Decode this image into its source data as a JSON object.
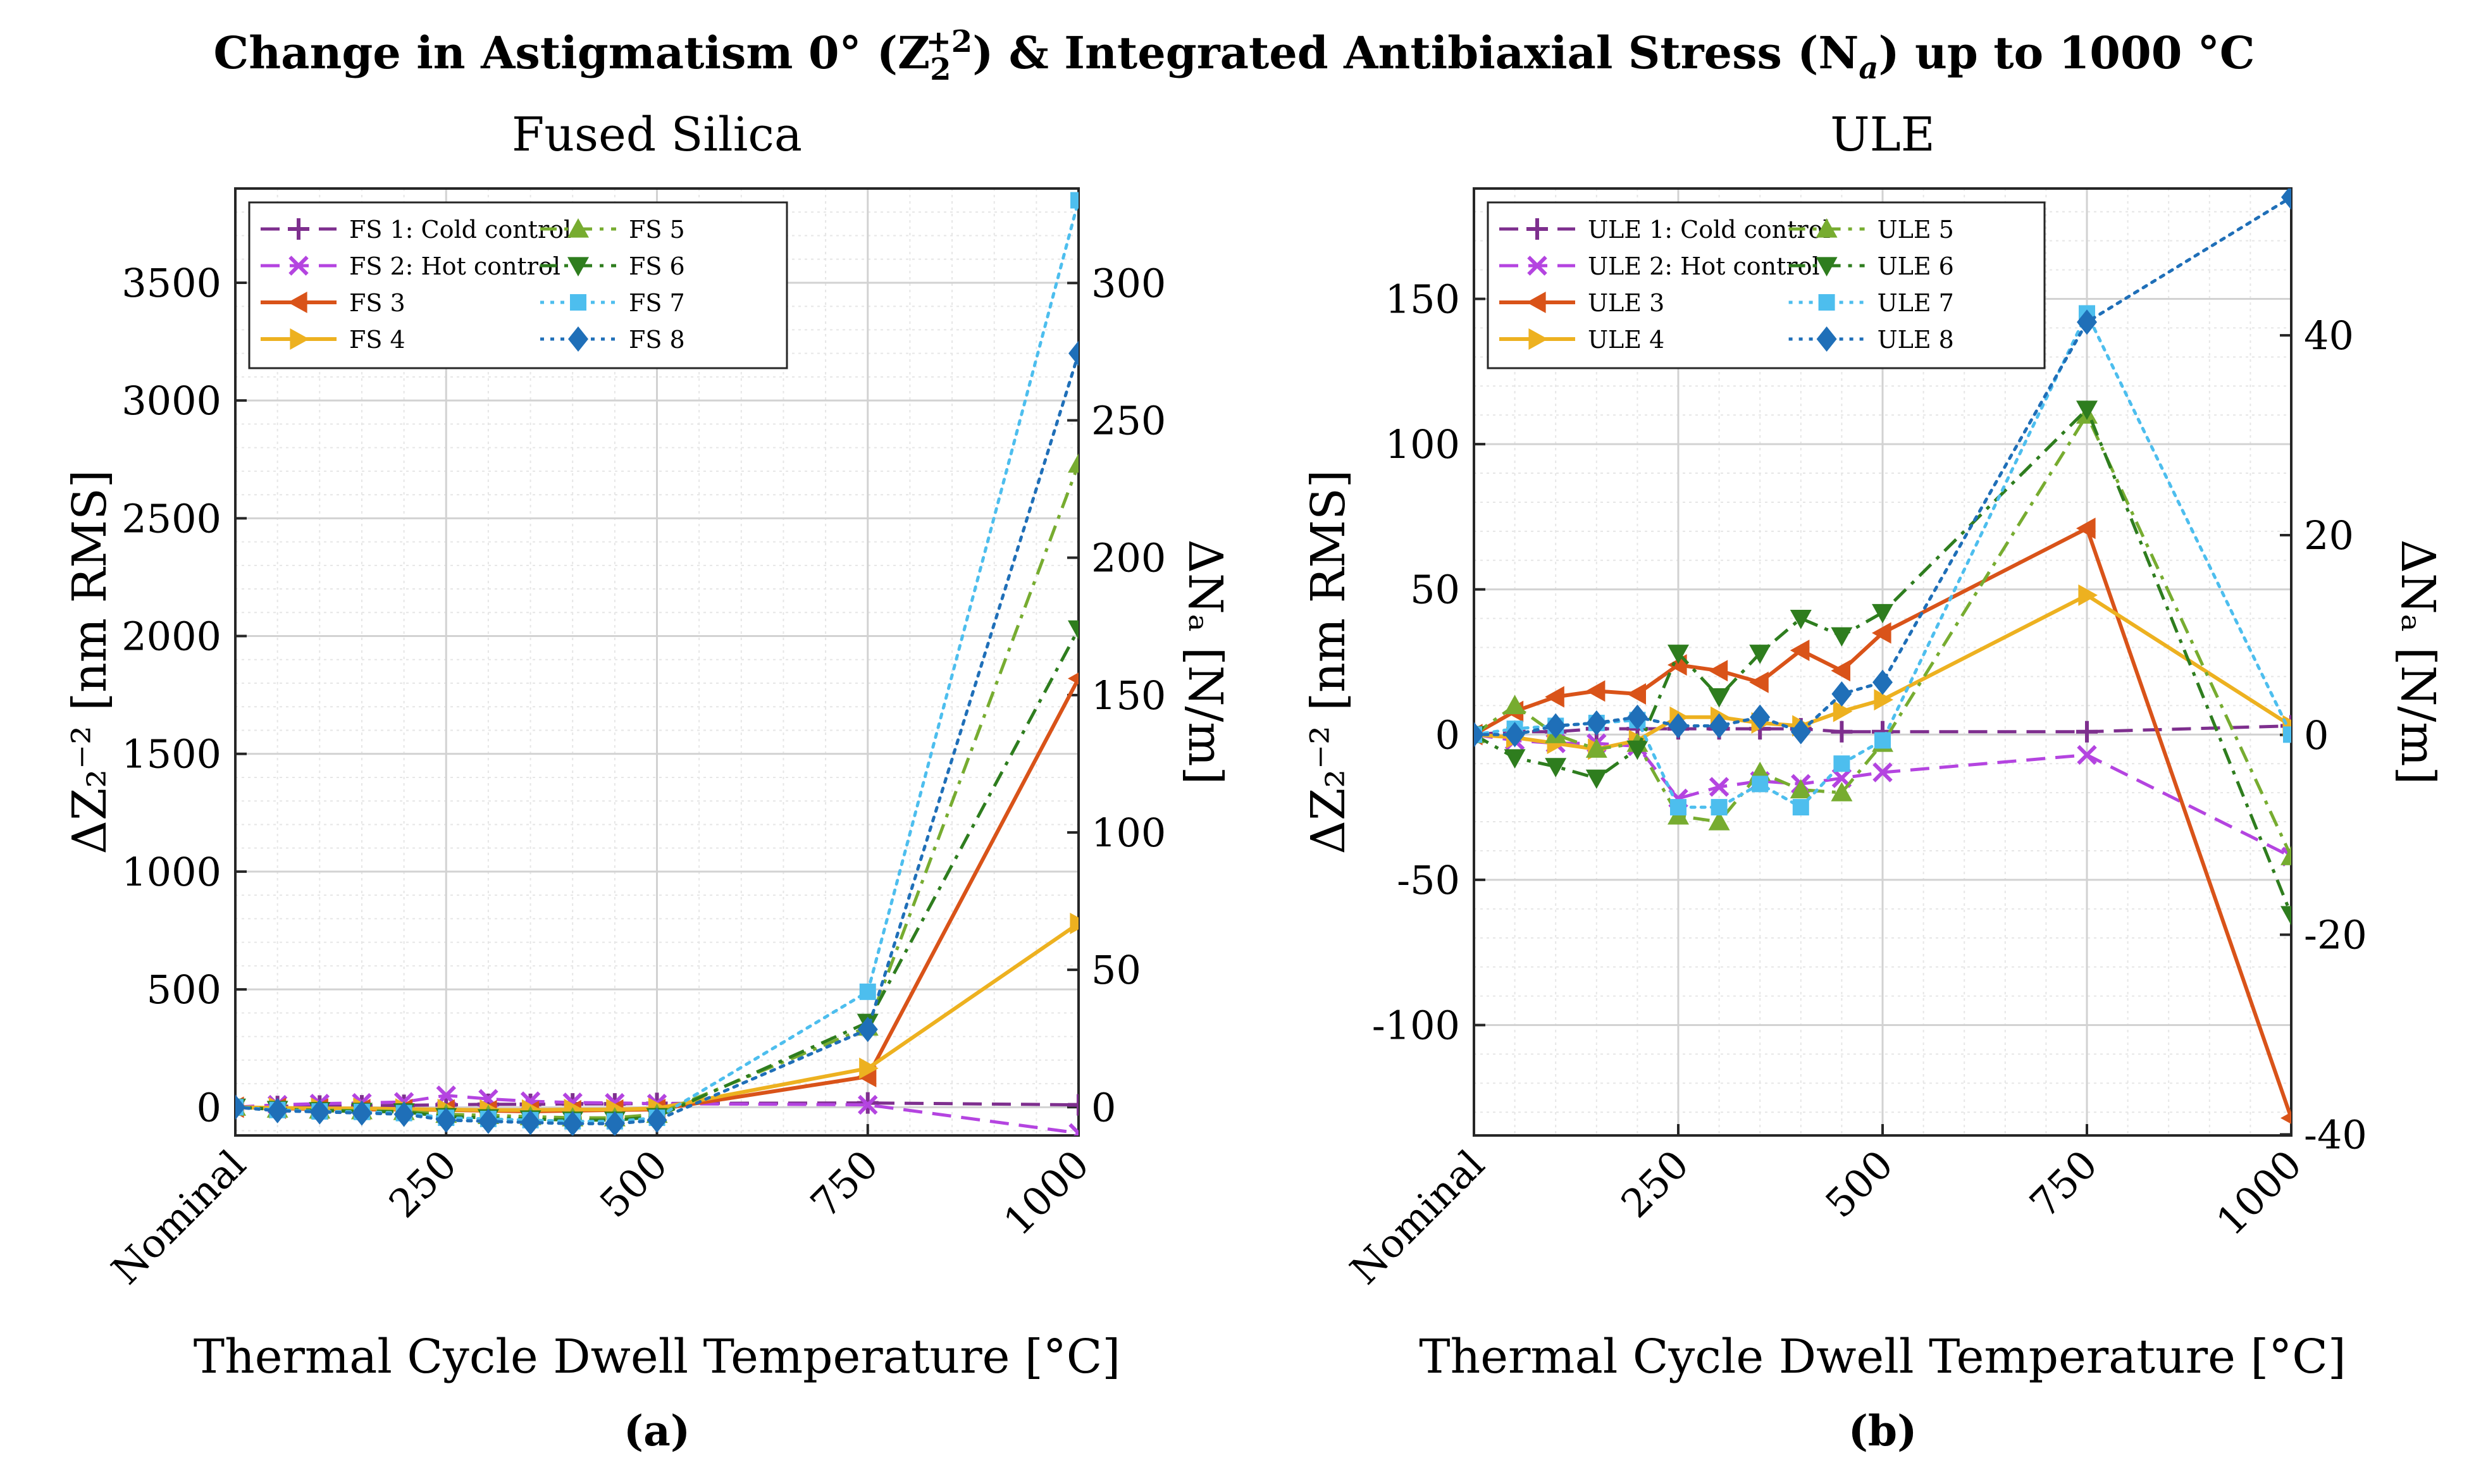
{
  "figure": {
    "title_main": "Change in Astigmatism 0° (Z",
    "title_sub": "2",
    "title_sup": "+2",
    "title_mid": ") & Integrated Antibiaxial Stress (N",
    "title_na_sub": "a",
    "title_end": ") up to 1000 °C",
    "colors": {
      "c1": "#7E2F8E",
      "c2": "#B444E0",
      "c3": "#D95319",
      "c4": "#EDB120",
      "c5": "#77AC30",
      "c6": "#2E7D1E",
      "c7": "#4DBEEE",
      "c8": "#1F6FB8"
    }
  },
  "chart_data": [
    {
      "type": "line",
      "panel_label": "(a)",
      "title": "Fused Silica",
      "xlabel": "Thermal Cycle Dwell Temperature [°C]",
      "ylabel_left": "ΔZ₂⁻² [nm RMS]",
      "ylabel_right": "ΔNₐ [N/m]",
      "xlim": [
        0,
        1000
      ],
      "ylim_left": [
        -120,
        3900
      ],
      "ylim_right": [
        -10.3,
        334.4
      ],
      "xticks": [
        0,
        250,
        500,
        750,
        1000
      ],
      "xticklabels": [
        "Nominal",
        "250",
        "500",
        "750",
        "1000"
      ],
      "yticks_left": [
        0,
        500,
        1000,
        1500,
        2000,
        2500,
        3000,
        3500
      ],
      "yticks_right": [
        0,
        50,
        100,
        150,
        200,
        250,
        300
      ],
      "legend_loc": "top-left",
      "series": [
        {
          "name": "FS 1: Cold control",
          "style": "dashed",
          "marker": "plus",
          "color": "c1",
          "x": [
            0,
            50,
            100,
            150,
            200,
            250,
            300,
            350,
            400,
            450,
            500,
            750,
            1000
          ],
          "y": [
            0,
            3,
            5,
            6,
            8,
            10,
            12,
            12,
            14,
            14,
            16,
            18,
            10
          ]
        },
        {
          "name": "FS 2: Hot control",
          "style": "dashed",
          "marker": "x",
          "color": "c2",
          "x": [
            0,
            50,
            100,
            150,
            200,
            250,
            300,
            350,
            400,
            450,
            500,
            750,
            1000
          ],
          "y": [
            0,
            10,
            15,
            18,
            22,
            50,
            35,
            25,
            20,
            18,
            15,
            10,
            -110
          ]
        },
        {
          "name": "FS 3",
          "style": "solid",
          "marker": "triangle-left",
          "color": "c3",
          "x": [
            0,
            50,
            100,
            150,
            200,
            250,
            300,
            350,
            400,
            450,
            500,
            750,
            1000
          ],
          "y": [
            0,
            -5,
            -8,
            -10,
            -10,
            -12,
            -15,
            -18,
            -15,
            -12,
            -10,
            130,
            1820
          ]
        },
        {
          "name": "FS 4",
          "style": "solid",
          "marker": "triangle-right",
          "color": "c4",
          "x": [
            0,
            50,
            100,
            150,
            200,
            250,
            300,
            350,
            400,
            450,
            500,
            750,
            1000
          ],
          "y": [
            0,
            -3,
            -5,
            -5,
            -8,
            -10,
            -12,
            -12,
            -10,
            -10,
            -5,
            165,
            780
          ]
        },
        {
          "name": "FS 5",
          "style": "dashdot",
          "marker": "triangle-up",
          "color": "c5",
          "x": [
            0,
            50,
            100,
            150,
            200,
            250,
            300,
            350,
            400,
            450,
            500,
            750,
            1000
          ],
          "y": [
            0,
            -8,
            -12,
            -15,
            -18,
            -30,
            -35,
            -40,
            -45,
            -45,
            -30,
            340,
            2730
          ]
        },
        {
          "name": "FS 6",
          "style": "dashdot",
          "marker": "triangle-down",
          "color": "c6",
          "x": [
            0,
            50,
            100,
            150,
            200,
            250,
            300,
            350,
            400,
            450,
            500,
            750,
            1000
          ],
          "y": [
            0,
            -10,
            -15,
            -18,
            -20,
            -40,
            -45,
            -50,
            -55,
            -55,
            -40,
            360,
            2030
          ]
        },
        {
          "name": "FS 7",
          "style": "dotted",
          "marker": "square",
          "color": "c7",
          "x": [
            0,
            50,
            100,
            150,
            200,
            250,
            300,
            350,
            400,
            450,
            500,
            750,
            1000
          ],
          "y": [
            0,
            -12,
            -18,
            -20,
            -25,
            -45,
            -50,
            -55,
            -60,
            -60,
            -45,
            490,
            3850
          ]
        },
        {
          "name": "FS 8",
          "style": "dotted",
          "marker": "diamond",
          "color": "c8",
          "x": [
            0,
            50,
            100,
            150,
            200,
            250,
            300,
            350,
            400,
            450,
            500,
            750,
            1000
          ],
          "y": [
            0,
            -15,
            -20,
            -25,
            -30,
            -55,
            -60,
            -65,
            -70,
            -70,
            -55,
            330,
            3200
          ]
        }
      ]
    },
    {
      "type": "line",
      "panel_label": "(b)",
      "title": "ULE",
      "xlabel": "Thermal Cycle Dwell Temperature [°C]",
      "ylabel_left": "ΔZ₂⁻² [nm RMS]",
      "ylabel_right": "ΔNₐ [N/m]",
      "xlim": [
        0,
        1000
      ],
      "ylim_left": [
        -138,
        188
      ],
      "ylim_right": [
        -40.1,
        54.7
      ],
      "xticks": [
        0,
        250,
        500,
        750,
        1000
      ],
      "xticklabels": [
        "Nominal",
        "250",
        "500",
        "750",
        "1000"
      ],
      "yticks_left": [
        -100,
        -50,
        0,
        50,
        100,
        150
      ],
      "yticks_right": [
        -40,
        -20,
        0,
        20,
        40
      ],
      "legend_loc": "top-left",
      "series": [
        {
          "name": "ULE 1: Cold control",
          "style": "dashed",
          "marker": "plus",
          "color": "c1",
          "x": [
            0,
            50,
            100,
            150,
            200,
            250,
            300,
            350,
            400,
            450,
            500,
            750,
            1000
          ],
          "y": [
            0,
            1,
            1,
            2,
            2,
            2,
            2,
            2,
            2,
            1,
            1,
            1,
            3
          ]
        },
        {
          "name": "ULE 2: Hot control",
          "style": "dashed",
          "marker": "x",
          "color": "c2",
          "x": [
            0,
            50,
            100,
            150,
            200,
            250,
            300,
            350,
            400,
            450,
            500,
            750,
            1000
          ],
          "y": [
            0,
            -2,
            -3,
            -3,
            -4,
            -22,
            -18,
            -16,
            -17,
            -15,
            -13,
            -7,
            -42
          ]
        },
        {
          "name": "ULE 3",
          "style": "solid",
          "marker": "triangle-left",
          "color": "c3",
          "x": [
            0,
            50,
            100,
            150,
            200,
            250,
            300,
            350,
            400,
            450,
            500,
            750,
            1000
          ],
          "y": [
            0,
            8,
            13,
            15,
            14,
            24,
            22,
            18,
            29,
            22,
            35,
            71,
            -132
          ]
        },
        {
          "name": "ULE 4",
          "style": "solid",
          "marker": "triangle-right",
          "color": "c4",
          "x": [
            0,
            50,
            100,
            150,
            200,
            250,
            300,
            350,
            400,
            450,
            500,
            750,
            1000
          ],
          "y": [
            0,
            -1,
            -3,
            -5,
            -2,
            6,
            6,
            4,
            3,
            8,
            12,
            48,
            3
          ]
        },
        {
          "name": "ULE 5",
          "style": "dashdot",
          "marker": "triangle-up",
          "color": "c5",
          "x": [
            0,
            50,
            100,
            150,
            200,
            250,
            300,
            350,
            400,
            450,
            500,
            750,
            1000
          ],
          "y": [
            0,
            10,
            0,
            -5,
            -3,
            -28,
            -30,
            -13,
            -19,
            -20,
            -3,
            110,
            -42
          ]
        },
        {
          "name": "ULE 6",
          "style": "dashdot",
          "marker": "triangle-down",
          "color": "c6",
          "x": [
            0,
            50,
            100,
            150,
            200,
            250,
            300,
            350,
            400,
            450,
            500,
            750,
            1000
          ],
          "y": [
            0,
            -8,
            -11,
            -15,
            -5,
            28,
            13,
            28,
            40,
            34,
            42,
            112,
            -62
          ]
        },
        {
          "name": "ULE 7",
          "style": "dotted",
          "marker": "square",
          "color": "c7",
          "x": [
            0,
            50,
            100,
            150,
            200,
            250,
            300,
            350,
            400,
            450,
            500,
            750,
            1000
          ],
          "y": [
            0,
            2,
            3,
            4,
            5,
            -25,
            -25,
            -17,
            -25,
            -10,
            -2,
            145,
            0
          ]
        },
        {
          "name": "ULE 8",
          "style": "dotted",
          "marker": "diamond",
          "color": "c8",
          "x": [
            0,
            50,
            100,
            150,
            200,
            250,
            300,
            350,
            400,
            450,
            500,
            750,
            1000
          ],
          "y": [
            0,
            0,
            3,
            4,
            6,
            3,
            3,
            6,
            1,
            14,
            18,
            142,
            185
          ]
        }
      ]
    }
  ]
}
